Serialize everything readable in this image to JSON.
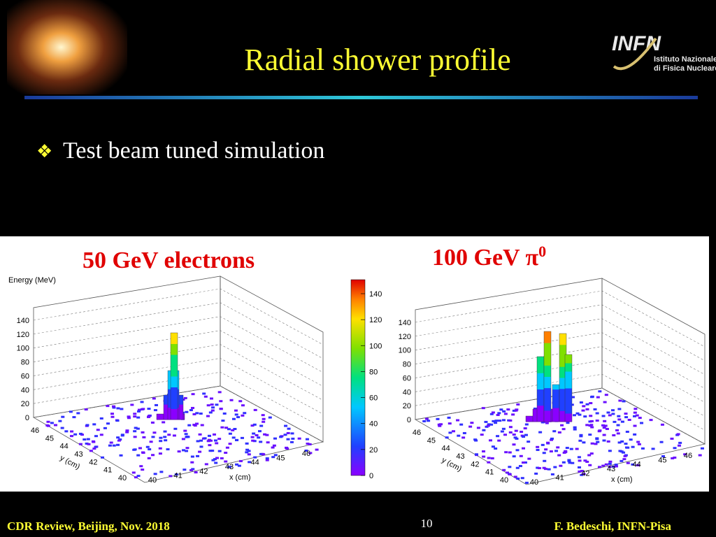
{
  "header": {
    "title": "Radial shower profile",
    "logo_name": "INFN",
    "logo_line1": "Istituto Nazionale",
    "logo_line2": "di Fisica Nucleare"
  },
  "bullet": "Test beam tuned simulation",
  "figure": {
    "left": {
      "title": "50 GeV electrons",
      "z_label": "Energy (MeV)",
      "z_ticks": [
        0,
        20,
        40,
        60,
        80,
        100,
        120,
        140
      ],
      "x_label": "x (cm)",
      "x_ticks": [
        40,
        41,
        42,
        43,
        44,
        45,
        46
      ],
      "y_label": "y (cm)",
      "y_ticks": [
        40,
        41,
        42,
        43,
        44,
        45,
        46
      ]
    },
    "right": {
      "title": "100 GeV π",
      "title_sup": "0",
      "z_ticks": [
        0,
        20,
        40,
        60,
        80,
        100,
        120,
        140
      ],
      "x_label": "x (cm)",
      "x_ticks": [
        40,
        41,
        42,
        43,
        44,
        45,
        46
      ],
      "y_label": "y (cm)",
      "y_ticks": [
        40,
        41,
        42,
        43,
        44,
        45,
        46
      ]
    },
    "colorbar": {
      "ticks": [
        0,
        20,
        40,
        60,
        80,
        100,
        120,
        140
      ]
    }
  },
  "footer": {
    "left": "CDR Review, Beijing, Nov. 2018",
    "page": "10",
    "right": "F. Bedeschi, INFN-Pisa"
  }
}
